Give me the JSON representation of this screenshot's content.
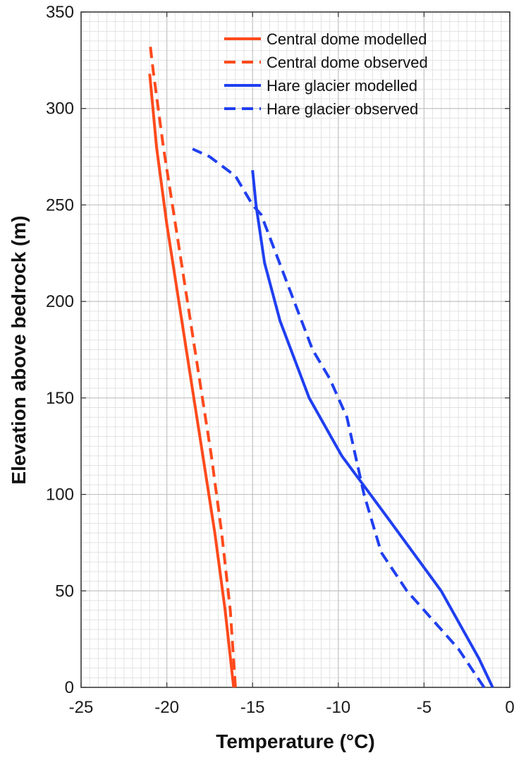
{
  "chart_data": {
    "type": "line",
    "title": "",
    "xlabel": "Temperature (°C)",
    "ylabel": "Elevation above bedrock (m)",
    "xlim": [
      -25,
      0
    ],
    "ylim": [
      0,
      350
    ],
    "xticks": [
      -25,
      -20,
      -15,
      -10,
      -5,
      0
    ],
    "yticks": [
      0,
      50,
      100,
      150,
      200,
      250,
      300,
      350
    ],
    "xtick_labels": [
      "-25",
      "-20",
      "-15",
      "-10",
      "-5",
      "0"
    ],
    "ytick_labels": [
      "0",
      "50",
      "100",
      "150",
      "200",
      "250",
      "300",
      "350"
    ],
    "grid": true,
    "minor_grid": true,
    "legend_position": "top-right",
    "series": [
      {
        "name": "Central  dome modelled",
        "color": "#ff4a1c",
        "style": "solid",
        "x": [
          -16.1,
          -16.6,
          -17.2,
          -17.9,
          -18.6,
          -19.3,
          -20.0,
          -20.6,
          -21.0
        ],
        "y": [
          0,
          40,
          80,
          120,
          160,
          200,
          240,
          280,
          318
        ]
      },
      {
        "name": "Central  dome observed",
        "color": "#ff4a1c",
        "style": "dashed",
        "x": [
          -16.0,
          -16.3,
          -16.8,
          -17.4,
          -18.1,
          -18.8,
          -19.5,
          -20.2,
          -20.8,
          -21.0
        ],
        "y": [
          0,
          40,
          80,
          120,
          160,
          200,
          240,
          280,
          320,
          335
        ]
      },
      {
        "name": "Hare glacier modelled",
        "color": "#1f3ff0",
        "style": "solid",
        "x": [
          -1.0,
          -1.8,
          -4.0,
          -7.3,
          -9.8,
          -11.7,
          -13.4,
          -14.3,
          -14.8,
          -15.0
        ],
        "y": [
          0,
          15,
          50,
          90,
          120,
          150,
          190,
          220,
          250,
          268
        ]
      },
      {
        "name": "Hare glacier observed",
        "color": "#1f3ff0",
        "style": "dashed",
        "x": [
          -1.5,
          -3.0,
          -6.0,
          -7.5,
          -8.5,
          -9.5,
          -10.5,
          -11.5,
          -13.0,
          -14.5,
          -15.0,
          -16.0,
          -17.5,
          -18.5
        ],
        "y": [
          0,
          20,
          50,
          70,
          100,
          140,
          160,
          175,
          210,
          245,
          250,
          265,
          275,
          279
        ]
      }
    ]
  }
}
